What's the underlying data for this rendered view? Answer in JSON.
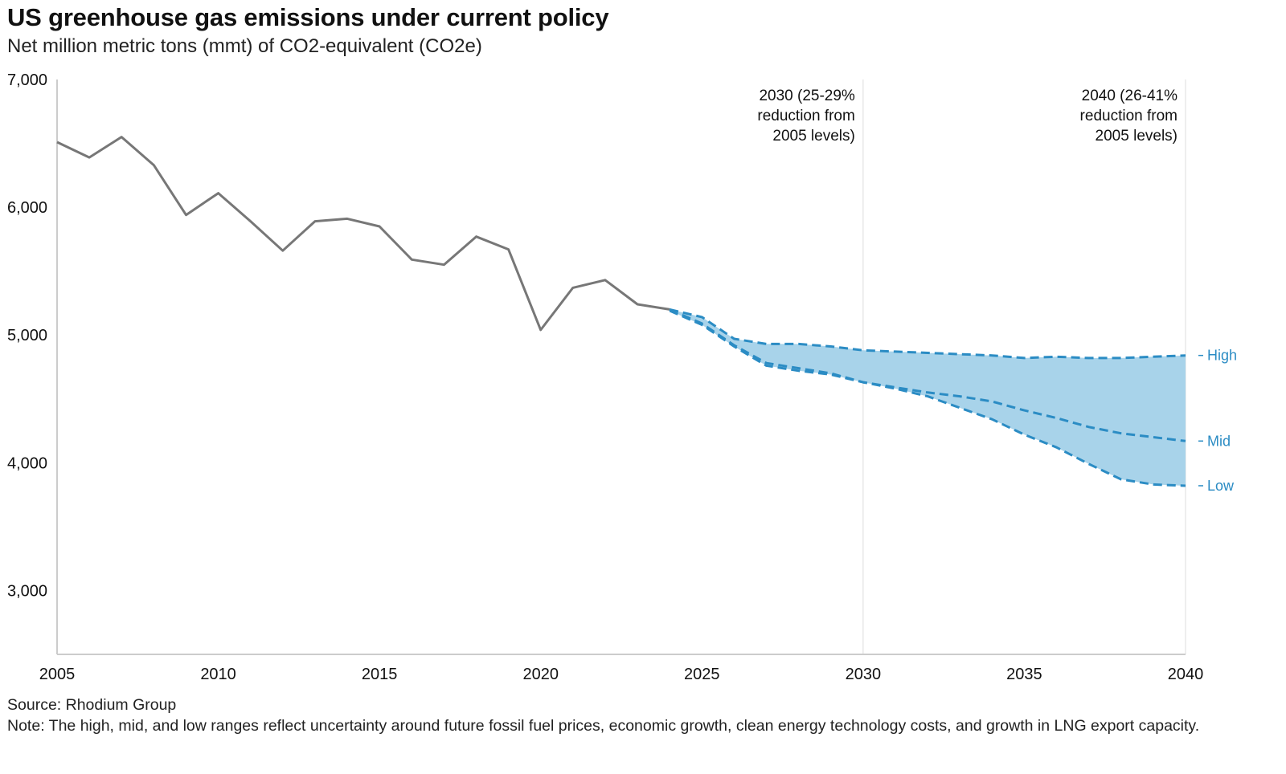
{
  "header": {
    "title": "US greenhouse gas emissions under current policy",
    "subtitle": "Net million metric tons (mmt) of CO2-equivalent (CO2e)"
  },
  "footer": {
    "source": "Source: Rhodium Group",
    "note": "Note: The high, mid, and low ranges reflect uncertainty around future fossil fuel prices, economic growth, clean energy technology costs, and growth in LNG export capacity."
  },
  "colors": {
    "historical": "#777777",
    "projection": "#2b8cc4",
    "band": "#a8d3ea",
    "axis": "#cccccc",
    "refline": "#e3e3e3"
  },
  "chart_data": {
    "type": "line",
    "xlim": [
      2005,
      2040
    ],
    "ylim": [
      2500,
      7000
    ],
    "x_ticks": [
      2005,
      2010,
      2015,
      2020,
      2025,
      2030,
      2035,
      2040
    ],
    "x_tick_labels": [
      "2005",
      "2010",
      "2015",
      "2020",
      "2025",
      "2030",
      "2035",
      "2040"
    ],
    "y_ticks": [
      3000,
      4000,
      5000,
      6000,
      7000
    ],
    "y_tick_labels": [
      "3,000",
      "4,000",
      "5,000",
      "6,000",
      "7,000"
    ],
    "grid": false,
    "series": [
      {
        "style": "solid",
        "color": "#777777",
        "x": [
          2005,
          2006,
          2007,
          2008,
          2009,
          2010,
          2011,
          2012,
          2013,
          2014,
          2015,
          2016,
          2017,
          2018,
          2019,
          2020,
          2021,
          2022,
          2023,
          2024
        ],
        "values": [
          6510,
          6390,
          6550,
          6330,
          5940,
          6110,
          5890,
          5660,
          5890,
          5910,
          5850,
          5590,
          5550,
          5770,
          5670,
          5040,
          5370,
          5430,
          5240,
          5200
        ]
      },
      {
        "name": "High",
        "style": "dashed",
        "color": "#2b8cc4",
        "x": [
          2024,
          2025,
          2026,
          2027,
          2028,
          2029,
          2030,
          2031,
          2032,
          2033,
          2034,
          2035,
          2036,
          2037,
          2038,
          2039,
          2040
        ],
        "values": [
          5200,
          5140,
          4970,
          4930,
          4930,
          4910,
          4880,
          4870,
          4860,
          4850,
          4840,
          4820,
          4830,
          4820,
          4820,
          4830,
          4840
        ]
      },
      {
        "name": "Mid",
        "style": "dashed",
        "color": "#2b8cc4",
        "x": [
          2024,
          2025,
          2026,
          2027,
          2028,
          2029,
          2030,
          2031,
          2032,
          2033,
          2034,
          2035,
          2036,
          2037,
          2038,
          2039,
          2040
        ],
        "values": [
          5200,
          5090,
          4920,
          4780,
          4740,
          4700,
          4630,
          4590,
          4550,
          4520,
          4480,
          4410,
          4350,
          4280,
          4230,
          4200,
          4170
        ]
      },
      {
        "name": "Low",
        "style": "dashed",
        "color": "#2b8cc4",
        "x": [
          2024,
          2025,
          2026,
          2027,
          2028,
          2029,
          2030,
          2031,
          2032,
          2033,
          2034,
          2035,
          2036,
          2037,
          2038,
          2039,
          2040
        ],
        "values": [
          5190,
          5080,
          4910,
          4760,
          4720,
          4690,
          4630,
          4580,
          4520,
          4430,
          4340,
          4220,
          4120,
          3990,
          3870,
          3830,
          3820
        ]
      }
    ],
    "band": {
      "from_series": "Low",
      "to_series": "High"
    },
    "annotations": [
      {
        "x": 2030,
        "lines": [
          "2030 (25-29%",
          "reduction from",
          "2005 levels)"
        ]
      },
      {
        "x": 2040,
        "lines": [
          "2040 (26-41%",
          "reduction from",
          "2005 levels)"
        ]
      }
    ]
  }
}
